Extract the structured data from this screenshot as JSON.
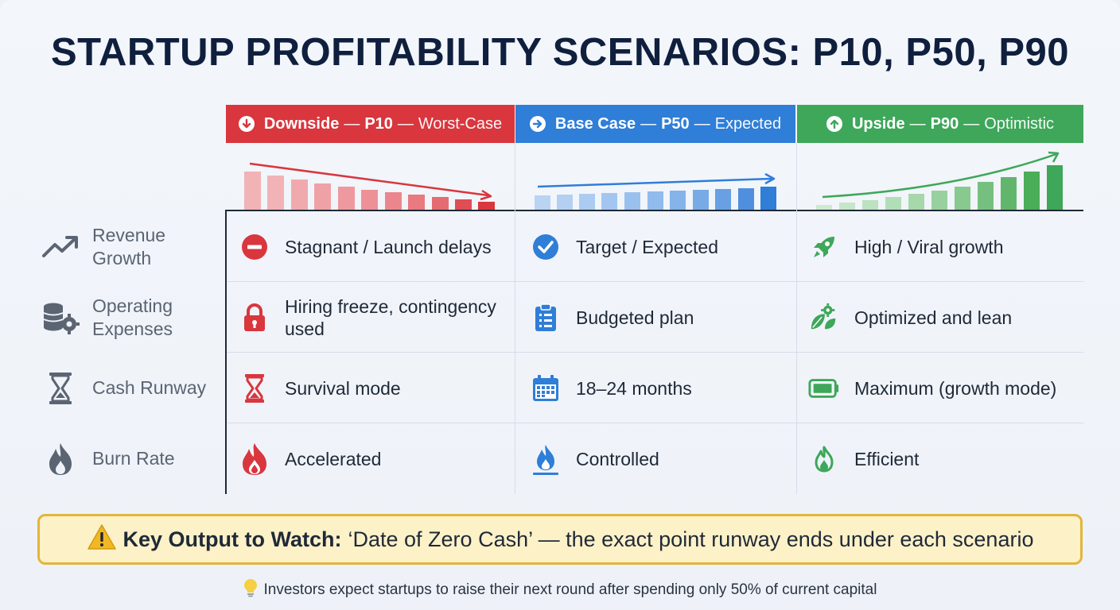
{
  "title": "STARTUP PROFITABILITY SCENARIOS: P10, P50, P90",
  "scenarios": [
    {
      "name": "Downside",
      "percentile": "P10",
      "tag": "Worst-Case",
      "color": "#d9363e",
      "icon": "arrow-down-icon",
      "trend": "declining"
    },
    {
      "name": "Base Case",
      "percentile": "P50",
      "tag": "Expected",
      "color": "#2f7ed8",
      "icon": "arrow-right-icon",
      "trend": "flat"
    },
    {
      "name": "Upside",
      "percentile": "P90",
      "tag": "Optimistic",
      "color": "#3ea75a",
      "icon": "arrow-up-icon",
      "trend": "rising"
    }
  ],
  "sep": "—",
  "rows": [
    {
      "label": "Revenue Growth",
      "icon": "trend-up-icon",
      "cells": [
        "Stagnant / Launch delays",
        "Target / Expected",
        "High / Viral growth"
      ],
      "cell_icons": [
        "no-entry-icon",
        "check-circle-icon",
        "rocket-icon"
      ]
    },
    {
      "label": "Operating Expenses",
      "icon": "coins-gear-icon",
      "cells": [
        "Hiring freeze, contingency used",
        "Budgeted plan",
        "Optimized and lean"
      ],
      "cell_icons": [
        "lock-icon",
        "clipboard-list-icon",
        "leaf-gear-icon"
      ]
    },
    {
      "label": "Cash Runway",
      "icon": "hourglass-icon",
      "cells": [
        "Survival mode",
        "18–24 months",
        "Maximum (growth mode)"
      ],
      "cell_icons": [
        "hourglass-icon",
        "calendar-icon",
        "battery-full-icon"
      ]
    },
    {
      "label": "Burn Rate",
      "icon": "flame-icon",
      "cells": [
        "Accelerated",
        "Controlled",
        "Efficient"
      ],
      "cell_icons": [
        "flame-large-icon",
        "flame-burner-icon",
        "flame-small-icon"
      ]
    }
  ],
  "callout": {
    "icon": "warning-icon",
    "bold": "Key Output to Watch:",
    "text": "‘Date of Zero Cash’ — the exact point runway ends under each scenario"
  },
  "footnote": {
    "icon": "lightbulb-icon",
    "text": "Investors expect startups to raise their next round after spending only 50% of current capital"
  }
}
